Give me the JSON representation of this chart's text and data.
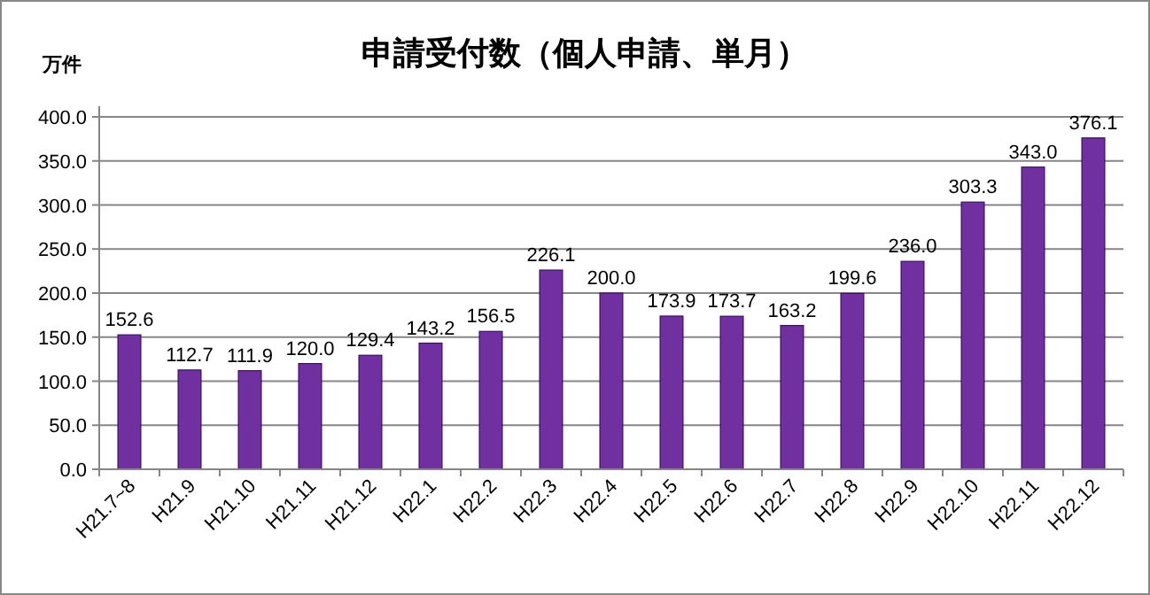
{
  "chart_data": {
    "type": "bar",
    "title": "申請受付数（個人申請、単月）",
    "ylabel": "万件",
    "categories": [
      "H21.7~8",
      "H21.9",
      "H21.10",
      "H21.11",
      "H21.12",
      "H22.1",
      "H22.2",
      "H22.3",
      "H22.4",
      "H22.5",
      "H22.6",
      "H22.7",
      "H22.8",
      "H22.9",
      "H22.10",
      "H22.11",
      "H22.12"
    ],
    "values": [
      152.6,
      112.7,
      111.9,
      120.0,
      129.4,
      143.2,
      156.5,
      226.1,
      200.0,
      173.9,
      173.7,
      163.2,
      199.6,
      236.0,
      303.3,
      343.0,
      376.1
    ],
    "value_labels": [
      "152.6",
      "112.7",
      "111.9",
      "120.0",
      "129.4",
      "143.2",
      "156.5",
      "226.1",
      "200.0",
      "173.9",
      "173.7",
      "163.2",
      "199.6",
      "236.0",
      "303.3",
      "343.0",
      "376.1"
    ],
    "color": "#7030a0",
    "ylim": [
      0,
      400
    ],
    "yticks": [
      {
        "value": 0,
        "label": "0.0"
      },
      {
        "value": 50,
        "label": "50.0"
      },
      {
        "value": 100,
        "label": "100.0"
      },
      {
        "value": 150,
        "label": "150.0"
      },
      {
        "value": 200,
        "label": "200.0"
      },
      {
        "value": 250,
        "label": "250.0"
      },
      {
        "value": 300,
        "label": "300.0"
      },
      {
        "value": 350,
        "label": "350.0"
      },
      {
        "value": 400,
        "label": "400.0"
      }
    ],
    "grid": "y"
  }
}
